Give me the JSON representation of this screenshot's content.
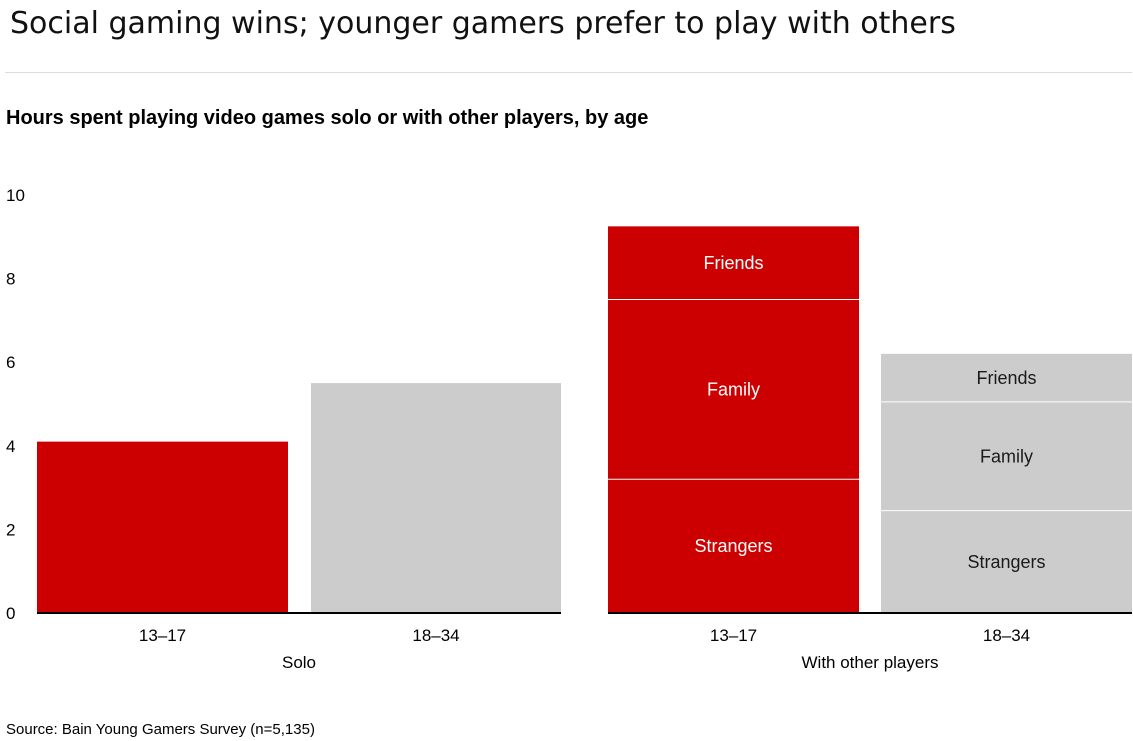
{
  "headline": "Social gaming wins; younger gamers prefer to play with others",
  "source": "Source: Bain Young Gamers Survey (n=5,135)",
  "colors": {
    "age_13_17": "#cc0000",
    "age_18_34": "#cccccc",
    "label_on_dark": "#ffffff",
    "label_on_light": "#1a1a1a",
    "axis": "#000000",
    "rule": "#dcdcdc"
  },
  "chart_data": {
    "type": "bar",
    "title": "Hours spent playing video games solo or with other players, by age",
    "xlabel": "",
    "ylabel": "",
    "ylim": [
      0,
      10
    ],
    "yticks": [
      0,
      2,
      4,
      6,
      8,
      10
    ],
    "grid": false,
    "stacked": true,
    "groups": [
      {
        "label": "Solo",
        "bars": [
          {
            "category": "13–17",
            "segments": [
              {
                "label": "",
                "value": 4.1
              }
            ]
          },
          {
            "category": "18–34",
            "segments": [
              {
                "label": "",
                "value": 5.5
              }
            ]
          }
        ]
      },
      {
        "label": "With other players",
        "bars": [
          {
            "category": "13–17",
            "segments": [
              {
                "label": "Strangers",
                "value": 3.2
              },
              {
                "label": "Family",
                "value": 4.3
              },
              {
                "label": "Friends",
                "value": 1.75
              }
            ]
          },
          {
            "category": "18–34",
            "segments": [
              {
                "label": "Strangers",
                "value": 2.45
              },
              {
                "label": "Family",
                "value": 2.6
              },
              {
                "label": "Friends",
                "value": 1.15
              }
            ]
          }
        ]
      }
    ]
  }
}
